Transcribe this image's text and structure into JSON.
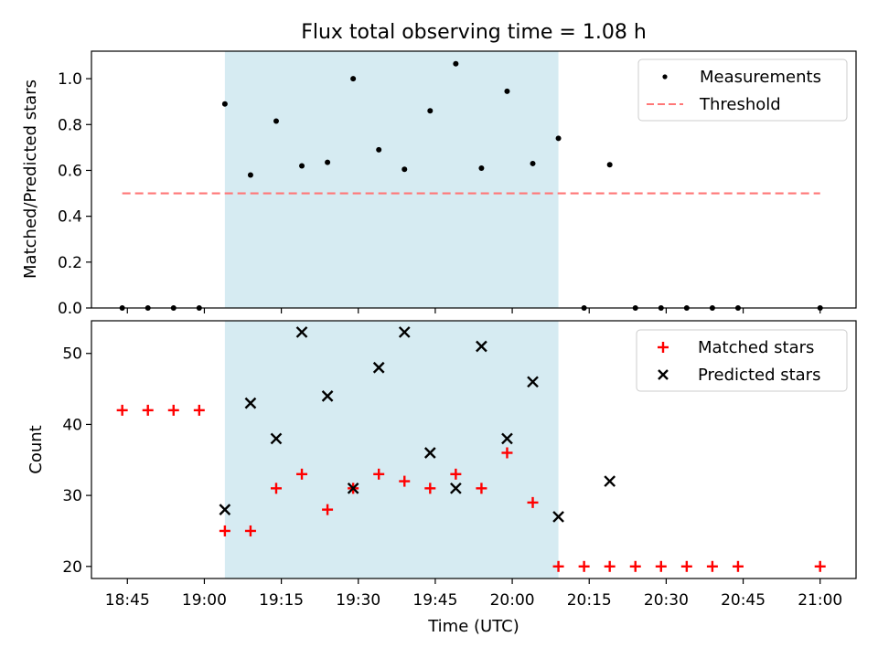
{
  "chart_data": [
    {
      "type": "scatter",
      "title": "Flux total observing time = 1.08 h",
      "xlabel": "",
      "ylabel": "Matched/Predicted stars",
      "ylim": [
        0,
        1.12
      ],
      "yticks": [
        "0.0",
        "0.2",
        "0.4",
        "0.6",
        "0.8",
        "1.0"
      ],
      "grid": false,
      "legend_position": "top-right",
      "shaded_interval": [
        "19:04",
        "20:09"
      ],
      "series": [
        {
          "name": "Measurements",
          "marker": "dot",
          "color": "#000000",
          "x": [
            "18:44",
            "18:49",
            "18:54",
            "18:59",
            "19:04",
            "19:09",
            "19:14",
            "19:19",
            "19:24",
            "19:29",
            "19:34",
            "19:39",
            "19:44",
            "19:49",
            "19:54",
            "19:59",
            "20:04",
            "20:09",
            "20:14",
            "20:19",
            "20:24",
            "20:29",
            "20:34",
            "20:39",
            "20:44",
            "21:00"
          ],
          "y": [
            0,
            0,
            0,
            0,
            0.89,
            0.58,
            0.815,
            0.62,
            0.635,
            1.0,
            0.69,
            0.605,
            0.86,
            1.065,
            0.61,
            0.945,
            0.63,
            0.74,
            0,
            0.625,
            0,
            0,
            0,
            0,
            0,
            0
          ]
        },
        {
          "name": "Threshold",
          "marker": "dashed-line",
          "color": "#ff7777",
          "x": [
            "18:44",
            "21:00"
          ],
          "y": [
            0.5,
            0.5
          ]
        }
      ]
    },
    {
      "type": "scatter",
      "title": "",
      "xlabel": "Time (UTC)",
      "ylabel": "Count",
      "ylim": [
        18.3,
        54.6
      ],
      "yticks": [
        "20",
        "30",
        "40",
        "50"
      ],
      "xticks": [
        "18:45",
        "19:00",
        "19:15",
        "19:30",
        "19:45",
        "20:00",
        "20:15",
        "20:30",
        "20:45",
        "21:00"
      ],
      "grid": false,
      "legend_position": "top-right",
      "shaded_interval": [
        "19:04",
        "20:09"
      ],
      "series": [
        {
          "name": "Matched stars",
          "marker": "plus",
          "color": "#ff0000",
          "x": [
            "18:44",
            "18:49",
            "18:54",
            "18:59",
            "19:04",
            "19:09",
            "19:14",
            "19:19",
            "19:24",
            "19:29",
            "19:34",
            "19:39",
            "19:44",
            "19:49",
            "19:54",
            "19:59",
            "20:04",
            "20:09",
            "20:14",
            "20:19",
            "20:24",
            "20:29",
            "20:34",
            "20:39",
            "20:44",
            "21:00"
          ],
          "y": [
            42,
            42,
            42,
            42,
            25,
            25,
            31,
            33,
            28,
            31,
            33,
            32,
            31,
            33,
            31,
            36,
            29,
            20,
            20,
            20,
            20,
            20,
            20,
            20,
            20,
            20
          ]
        },
        {
          "name": "Predicted stars",
          "marker": "x",
          "color": "#000000",
          "x": [
            "19:04",
            "19:09",
            "19:14",
            "19:19",
            "19:24",
            "19:29",
            "19:34",
            "19:39",
            "19:44",
            "19:49",
            "19:54",
            "19:59",
            "20:04",
            "20:09",
            "20:19"
          ],
          "y": [
            28,
            43,
            38,
            53,
            44,
            31,
            48,
            53,
            36,
            31,
            51,
            38,
            46,
            27,
            32
          ]
        }
      ]
    }
  ]
}
